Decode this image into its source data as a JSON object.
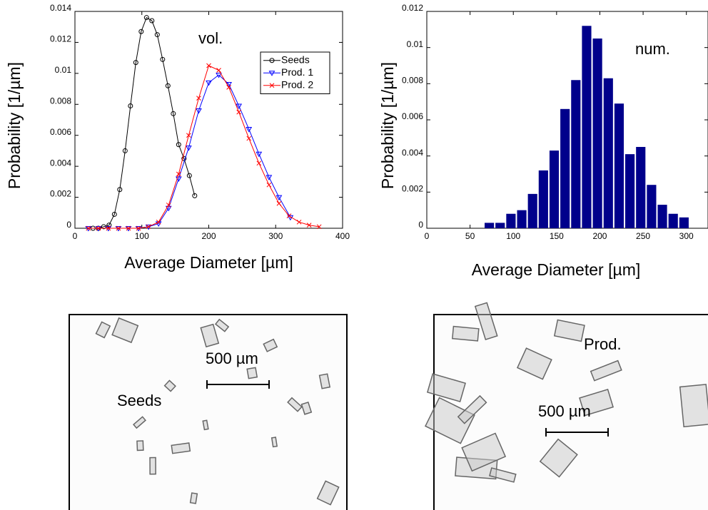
{
  "chart_data": [
    {
      "type": "line",
      "annotation": "vol.",
      "xlabel": "Average Diameter [µm]",
      "ylabel": "Probability [1/µm]",
      "xlim": [
        0,
        400
      ],
      "xticks": [
        0,
        100,
        200,
        300,
        400
      ],
      "ylim": [
        0,
        0.014
      ],
      "yticks": [
        0,
        0.002,
        0.004,
        0.006,
        0.008,
        0.01,
        0.012,
        0.014
      ],
      "legend": "upper right",
      "series": [
        {
          "name": "Seeds",
          "color": "#000000",
          "marker": "circle",
          "x": [
            27,
            35,
            43,
            51,
            59,
            67,
            75,
            83,
            91,
            99,
            107,
            115,
            123,
            131,
            139,
            147,
            155,
            163,
            171,
            179
          ],
          "values": [
            0,
            0,
            0.0001,
            0.0002,
            0.0009,
            0.0025,
            0.005,
            0.0079,
            0.0107,
            0.0127,
            0.0136,
            0.0134,
            0.0125,
            0.0109,
            0.0092,
            0.0074,
            0.0054,
            0.0045,
            0.0034,
            0.0021
          ]
        },
        {
          "name": "Prod. 1",
          "color": "#0000ff",
          "marker": "triangle-down",
          "x": [
            20,
            35,
            50,
            65,
            80,
            95,
            110,
            125,
            140,
            155,
            170,
            185,
            200,
            215,
            230,
            245,
            260,
            275,
            290,
            305,
            322
          ],
          "values": [
            0,
            0,
            0,
            0,
            0,
            0,
            0.0001,
            0.0003,
            0.0013,
            0.0032,
            0.0052,
            0.0076,
            0.0094,
            0.0099,
            0.0093,
            0.0079,
            0.0064,
            0.0048,
            0.0033,
            0.002,
            0.0007
          ]
        },
        {
          "name": "Prod. 2",
          "color": "#ff0000",
          "marker": "x",
          "x": [
            20,
            35,
            50,
            65,
            80,
            95,
            110,
            125,
            140,
            155,
            170,
            185,
            200,
            215,
            230,
            245,
            260,
            275,
            290,
            305,
            320,
            335,
            350,
            365
          ],
          "values": [
            0,
            0,
            0,
            0,
            0,
            0,
            0.0001,
            0.0004,
            0.0015,
            0.0035,
            0.006,
            0.0084,
            0.0105,
            0.0102,
            0.0091,
            0.0075,
            0.0058,
            0.0042,
            0.0028,
            0.0016,
            0.0008,
            0.0004,
            0.0002,
            0.0001
          ]
        }
      ]
    },
    {
      "type": "histogram",
      "annotation": "num.",
      "xlabel": "Average Diameter [µm]",
      "ylabel": "Probability [1/µm]",
      "xlim": [
        0,
        325
      ],
      "xticks": [
        0,
        50,
        100,
        150,
        200,
        250,
        300
      ],
      "ylim": [
        0,
        0.012
      ],
      "yticks": [
        0,
        0.002,
        0.004,
        0.006,
        0.008,
        0.01,
        0.012
      ],
      "color": "#00008b",
      "bins": [
        66,
        78.5,
        91,
        103.5,
        116,
        128.5,
        141,
        153.5,
        166,
        178.5,
        191,
        203.5,
        216,
        228.5,
        241,
        253.5,
        266,
        278.5,
        291,
        303.5
      ],
      "values": [
        0.0003,
        0.0003,
        0.0008,
        0.001,
        0.0019,
        0.0032,
        0.0043,
        0.0066,
        0.0082,
        0.0112,
        0.0105,
        0.0083,
        0.0069,
        0.0041,
        0.0045,
        0.0024,
        0.0013,
        0.0008,
        0.0006
      ]
    }
  ],
  "images": [
    {
      "label": "Seeds",
      "scale_bar": "500 µm"
    },
    {
      "label": "Prod.",
      "scale_bar": "500 µm"
    }
  ]
}
